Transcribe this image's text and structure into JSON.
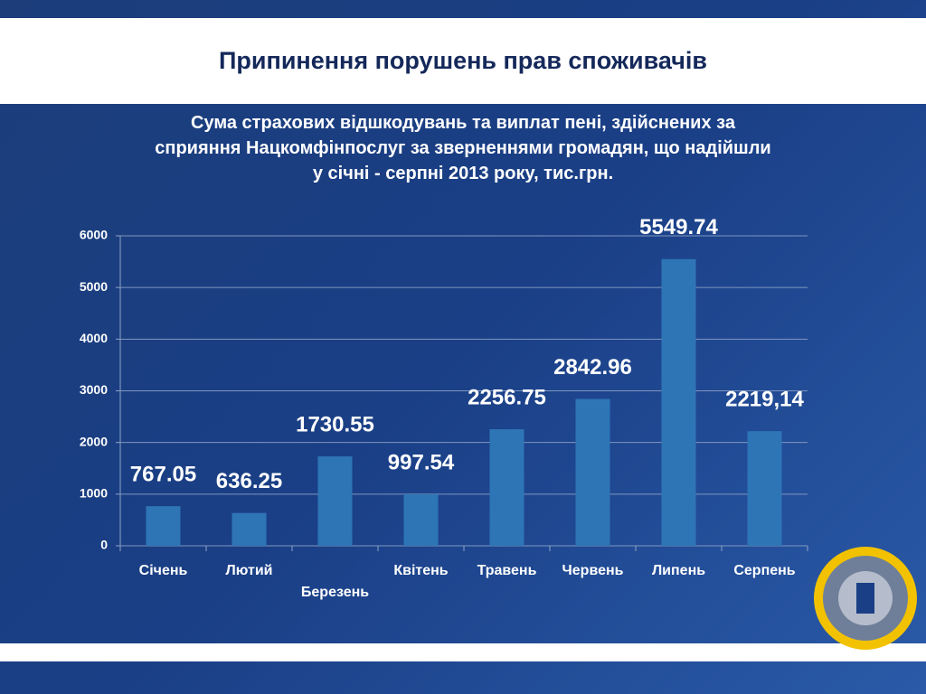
{
  "header": {
    "title": "Припинення порушень прав споживачів"
  },
  "chart_data": {
    "type": "bar",
    "title": "Сума страхових відшкодувань та виплат пені, здійснених за сприяння Нацкомфінпослуг за зверненнями громадян, що надійшли у січні - серпні 2013 року, тис.грн.",
    "categories": [
      "Січень",
      "Лютий",
      "Березень",
      "Квітень",
      "Травень",
      "Червень",
      "Липень",
      "Серпень"
    ],
    "values": [
      767.05,
      636.25,
      1730.55,
      997.54,
      2256.75,
      2842.96,
      5549.74,
      2219.14
    ],
    "value_labels": [
      "767.05",
      "636.25",
      "1730.55",
      "997.54",
      "2256.75",
      "2842.96",
      "5549.74",
      "2219,14"
    ],
    "color": "#2e75b6",
    "ylim": [
      0,
      6000
    ],
    "yticks": [
      0,
      1000,
      2000,
      3000,
      4000,
      5000,
      6000
    ],
    "grid": true
  }
}
